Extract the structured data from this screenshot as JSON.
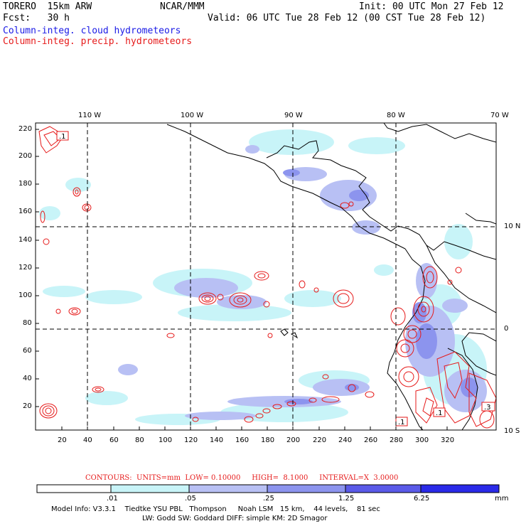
{
  "header": {
    "model": "TORERO  15km ARW",
    "org": "NCAR/MMM",
    "init": "Init: 00 UTC Mon 27 Feb 12",
    "fcst": "Fcst:   30 h",
    "valid": "Valid: 06 UTC Tue 28 Feb 12 (00 CST Tue 28 Feb 12)",
    "field1": "Column-integ. cloud hydrometeors",
    "field2": "Column-integ. precip. hydrometeors"
  },
  "colors": {
    "cloud_label": "#1a1ae6",
    "precip": "#e61a1a",
    "cloud_fills": [
      "#ffffff",
      "#c8f4f8",
      "#b8c0f4",
      "#8c94ee",
      "#5a5ae8",
      "#2a2ae8"
    ]
  },
  "axes": {
    "x_ticks": [
      "20",
      "40",
      "60",
      "80",
      "100",
      "120",
      "140",
      "160",
      "180",
      "200",
      "220",
      "240",
      "260",
      "280",
      "300",
      "320"
    ],
    "y_ticks": [
      "220",
      "200",
      "180",
      "160",
      "140",
      "120",
      "100",
      "80",
      "60",
      "40",
      "20"
    ],
    "lon_labels": [
      "110 W",
      "100 W",
      "90 W",
      "80 W",
      "70 W"
    ],
    "lat_labels": [
      "10 N",
      "0",
      "10 S"
    ]
  },
  "precip_labels": [
    ".1",
    ".1",
    ".1",
    ".3"
  ],
  "legend": {
    "contours_line": "CONTOURS:  UNITS=mm  LOW= 0.10000     HIGH=  8.1000     INTERVAL=X  3.0000",
    "values": [
      ".01",
      ".05",
      ".25",
      "1.25",
      "6.25"
    ],
    "unit": "mm"
  },
  "footer": {
    "line1": "Model Info: V3.3.1    Tiedtke YSU PBL   Thompson     Noah LSM   15 km,    44 levels,    81 sec",
    "line2": "LW: Godd SW: Goddard DIFF: simple KM: 2D Smagor"
  }
}
